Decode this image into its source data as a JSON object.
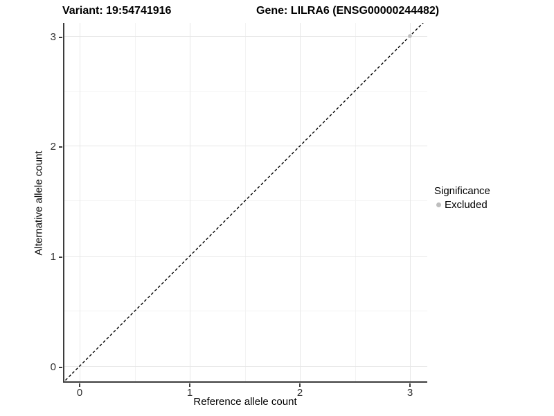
{
  "header": {
    "variant_title": "Variant: 19:54741916",
    "gene_title": "Gene: LILRA6 (ENSG00000244482)"
  },
  "chart_data": {
    "type": "scatter",
    "title": "Variant: 19:54741916 — Gene: LILRA6 (ENSG00000244482)",
    "xlabel": "Reference allele count",
    "ylabel": "Alternative allele count",
    "x_ticks": [
      "0",
      "1",
      "2",
      "3"
    ],
    "y_ticks": [
      "0",
      "1",
      "2",
      "3"
    ],
    "xlim": [
      -0.16,
      3.16
    ],
    "ylim": [
      -0.14,
      3.13
    ],
    "grid": "major at integers, minor at half-integers, light gray on white",
    "points": [
      {
        "x": 3,
        "y": 3,
        "significance": "Excluded"
      }
    ],
    "identity_line": {
      "slope": 1,
      "intercept": 0,
      "style": "dashed",
      "color": "#000000"
    },
    "legend": {
      "title": "Significance",
      "position": "right",
      "entries": [
        {
          "label": "Excluded",
          "color": "#bebebe",
          "marker": "circle"
        }
      ]
    },
    "colors": {
      "axis_line": "#3c3c3c",
      "grid_major": "#e7e7e7",
      "grid_minor": "#f3f3f3",
      "point_excluded": "#bebebe"
    }
  }
}
